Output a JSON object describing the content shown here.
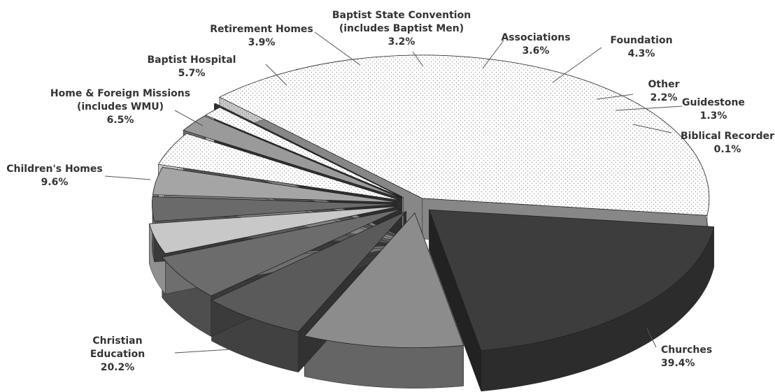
{
  "chart_data": {
    "type": "pie",
    "title": "",
    "style": "3d-exploded",
    "slices": [
      {
        "name": "Churches",
        "value": 39.4,
        "label_lines": [
          "Churches",
          "39.4%"
        ],
        "fill": "stipple-light",
        "color": "#f5f5f5"
      },
      {
        "name": "Christian Education",
        "value": 20.2,
        "label_lines": [
          "Christian",
          "Education",
          "20.2%"
        ],
        "fill": "solid",
        "color": "#3d3d3d"
      },
      {
        "name": "Children's Homes",
        "value": 9.6,
        "label_lines": [
          "Children's Homes",
          "9.6%"
        ],
        "fill": "solid",
        "color": "#8c8c8c"
      },
      {
        "name": "Home & Foreign Missions (includes WMU)",
        "value": 6.5,
        "label_lines": [
          "Home & Foreign Missions",
          "(includes WMU)",
          "6.5%"
        ],
        "fill": "solid",
        "color": "#5a5a5a"
      },
      {
        "name": "Baptist Hospital",
        "value": 5.7,
        "label_lines": [
          "Baptist Hospital",
          "5.7%"
        ],
        "fill": "solid",
        "color": "#6c6c6c"
      },
      {
        "name": "Retirement Homes",
        "value": 3.9,
        "label_lines": [
          "Retirement Homes",
          "3.9%"
        ],
        "fill": "solid",
        "color": "#c8c8c8"
      },
      {
        "name": "Baptist State Convention (includes Baptist Men)",
        "value": 3.2,
        "label_lines": [
          "Baptist State Convention",
          "(includes Baptist Men)",
          "3.2%"
        ],
        "fill": "solid",
        "color": "#6a6a6a"
      },
      {
        "name": "Associations",
        "value": 3.6,
        "label_lines": [
          "Associations",
          "3.6%"
        ],
        "fill": "solid",
        "color": "#a5a5a5"
      },
      {
        "name": "Foundation",
        "value": 4.3,
        "label_lines": [
          "Foundation",
          "4.3%"
        ],
        "fill": "stipple-light",
        "color": "#eeeeee"
      },
      {
        "name": "Other",
        "value": 2.2,
        "label_lines": [
          "Other",
          "2.2%"
        ],
        "fill": "solid",
        "color": "#9a9a9a"
      },
      {
        "name": "Guidestone",
        "value": 1.3,
        "label_lines": [
          "Guidestone",
          "1.3%"
        ],
        "fill": "stipple-light",
        "color": "#f2f2f2"
      },
      {
        "name": "Biblical Recorder",
        "value": 0.1,
        "label_lines": [
          "Biblical Recorder",
          "0.1%"
        ],
        "fill": "solid",
        "color": "#555555"
      }
    ]
  }
}
